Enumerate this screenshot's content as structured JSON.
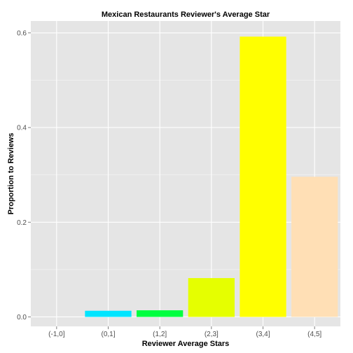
{
  "chart_data": {
    "type": "bar",
    "title": "Mexican Restaurants Reviewer's Average Star",
    "xlabel": "Reviewer Average Stars",
    "ylabel": "Proportion to Reviews",
    "categories": [
      "(-1,0]",
      "(0,1]",
      "(1,2]",
      "(2,3]",
      "(3,4]",
      "(4,5]"
    ],
    "values": [
      0.0,
      0.013,
      0.014,
      0.082,
      0.592,
      0.296
    ],
    "colors": [
      "#cccccc",
      "#00e5ff",
      "#00ff40",
      "#e5ff00",
      "#ffff00",
      "#ffdfb5"
    ],
    "ylim": [
      -0.02,
      0.625
    ],
    "yticks": [
      0.0,
      0.2,
      0.4,
      0.6
    ],
    "ytick_labels": [
      "0.0",
      "0.2",
      "0.4",
      "0.6"
    ],
    "grid": true,
    "panel_background": "#e5e5e5",
    "grid_color": "#ffffff"
  }
}
